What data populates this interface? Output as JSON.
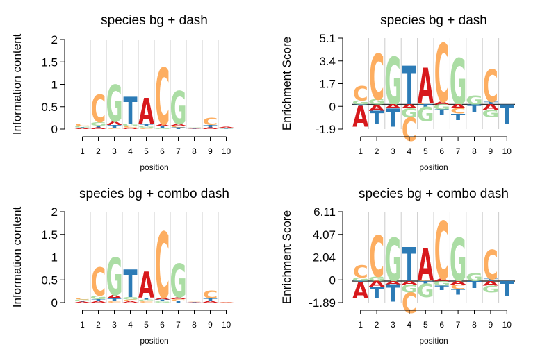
{
  "colors": {
    "A": "#d7191c",
    "C": "#fdae61",
    "G": "#abdda4",
    "T": "#2c7bb6",
    "grid": "#cccccc",
    "axis": "#000000"
  },
  "chart_data": [
    {
      "type": "sequence-logo",
      "title": "species bg + dash",
      "xlabel": "position",
      "ylabel": "Information content",
      "yticks": [
        "0",
        "0.5",
        "1",
        "1.5",
        "2"
      ],
      "ylim": [
        0,
        2
      ],
      "positions": [
        "1",
        "2",
        "3",
        "4",
        "5",
        "6",
        "7",
        "8",
        "9",
        "10"
      ],
      "stacks": [
        [
          {
            "l": "A",
            "v": 0.02
          },
          {
            "l": "T",
            "v": 0.02
          },
          {
            "l": "G",
            "v": 0.03
          },
          {
            "l": "C",
            "v": 0.05
          }
        ],
        [
          {
            "l": "A",
            "v": 0.04
          },
          {
            "l": "T",
            "v": 0.04
          },
          {
            "l": "G",
            "v": 0.08
          },
          {
            "l": "C",
            "v": 0.62
          }
        ],
        [
          {
            "l": "C",
            "v": 0.03
          },
          {
            "l": "T",
            "v": 0.06
          },
          {
            "l": "A",
            "v": 0.08
          },
          {
            "l": "G",
            "v": 0.82
          }
        ],
        [
          {
            "l": "A",
            "v": 0.03
          },
          {
            "l": "C",
            "v": 0.04
          },
          {
            "l": "G",
            "v": 0.05
          },
          {
            "l": "T",
            "v": 0.61
          }
        ],
        [
          {
            "l": "C",
            "v": 0.03
          },
          {
            "l": "G",
            "v": 0.04
          },
          {
            "l": "T",
            "v": 0.04
          },
          {
            "l": "A",
            "v": 0.58
          }
        ],
        [
          {
            "l": "G",
            "v": 0.03
          },
          {
            "l": "T",
            "v": 0.04
          },
          {
            "l": "A",
            "v": 0.04
          },
          {
            "l": "C",
            "v": 1.26
          }
        ],
        [
          {
            "l": "T",
            "v": 0.04
          },
          {
            "l": "C",
            "v": 0.04
          },
          {
            "l": "A",
            "v": 0.04
          },
          {
            "l": "G",
            "v": 0.74
          }
        ],
        [
          {
            "l": "A",
            "v": 0.01
          },
          {
            "l": "T",
            "v": 0.01
          },
          {
            "l": "C",
            "v": 0.01
          },
          {
            "l": "G",
            "v": 0.01
          }
        ],
        [
          {
            "l": "A",
            "v": 0.04
          },
          {
            "l": "T",
            "v": 0.05
          },
          {
            "l": "C",
            "v": 0.16
          }
        ],
        [
          {
            "l": "A",
            "v": 0.02
          },
          {
            "l": "T",
            "v": 0.01
          },
          {
            "l": "G",
            "v": 0.01
          },
          {
            "l": "C",
            "v": 0.01
          }
        ]
      ]
    },
    {
      "type": "sequence-logo",
      "title": "species bg + dash",
      "xlabel": "position",
      "ylabel": "Enrichment Score",
      "yticks": [
        "-1.9",
        "0",
        "1.7",
        "3.4",
        "5.1"
      ],
      "ylim": [
        -1.9,
        5.1
      ],
      "positions": [
        "1",
        "2",
        "3",
        "4",
        "5",
        "6",
        "7",
        "8",
        "9",
        "10"
      ],
      "stacks": [
        [
          {
            "l": "T",
            "v": -0.1
          },
          {
            "l": "A",
            "v": -1.6
          },
          {
            "l": "G",
            "v": 0.3
          },
          {
            "l": "C",
            "v": 1.1
          }
        ],
        [
          {
            "l": "A",
            "v": -0.5
          },
          {
            "l": "T",
            "v": -1.0
          },
          {
            "l": "G",
            "v": 0.4
          },
          {
            "l": "C",
            "v": 3.5
          }
        ],
        [
          {
            "l": "A",
            "v": -0.3
          },
          {
            "l": "T",
            "v": -1.4
          },
          {
            "l": "G",
            "v": 3.7
          }
        ],
        [
          {
            "l": "A",
            "v": -0.3
          },
          {
            "l": "G",
            "v": -0.7
          },
          {
            "l": "C",
            "v": -1.8
          },
          {
            "l": "T",
            "v": 3.0
          }
        ],
        [
          {
            "l": "T",
            "v": -0.2
          },
          {
            "l": "G",
            "v": -1.1
          },
          {
            "l": "C",
            "v": 0.1
          },
          {
            "l": "A",
            "v": 2.7
          }
        ],
        [
          {
            "l": "G",
            "v": -0.4
          },
          {
            "l": "T",
            "v": -0.4
          },
          {
            "l": "A",
            "v": 0.2
          },
          {
            "l": "C",
            "v": 4.5
          }
        ],
        [
          {
            "l": "C",
            "v": -0.4
          },
          {
            "l": "A",
            "v": -0.3
          },
          {
            "l": "T",
            "v": -0.5
          },
          {
            "l": "G",
            "v": 3.6
          }
        ],
        [
          {
            "l": "T",
            "v": -0.6
          },
          {
            "l": "G",
            "v": 0.7
          }
        ],
        [
          {
            "l": "A",
            "v": -0.4
          },
          {
            "l": "G",
            "v": -0.6
          },
          {
            "l": "T",
            "v": 0.2
          },
          {
            "l": "C",
            "v": 2.5
          }
        ],
        [
          {
            "l": "T",
            "v": -1.5
          }
        ]
      ]
    },
    {
      "type": "sequence-logo",
      "title": "species bg + combo dash",
      "xlabel": "position",
      "ylabel": "Information content",
      "yticks": [
        "0",
        "0.5",
        "1",
        "1.5",
        "2"
      ],
      "ylim": [
        0,
        2
      ],
      "positions": [
        "1",
        "2",
        "3",
        "4",
        "5",
        "6",
        "7",
        "8",
        "9",
        "10"
      ],
      "stacks": [
        [
          {
            "l": "A",
            "v": 0.02
          },
          {
            "l": "T",
            "v": 0.02
          },
          {
            "l": "G",
            "v": 0.03
          },
          {
            "l": "C",
            "v": 0.04
          }
        ],
        [
          {
            "l": "A",
            "v": 0.04
          },
          {
            "l": "T",
            "v": 0.04
          },
          {
            "l": "G",
            "v": 0.08
          },
          {
            "l": "C",
            "v": 0.62
          }
        ],
        [
          {
            "l": "C",
            "v": 0.03
          },
          {
            "l": "T",
            "v": 0.06
          },
          {
            "l": "A",
            "v": 0.08
          },
          {
            "l": "G",
            "v": 0.82
          }
        ],
        [
          {
            "l": "A",
            "v": 0.03
          },
          {
            "l": "C",
            "v": 0.04
          },
          {
            "l": "G",
            "v": 0.05
          },
          {
            "l": "T",
            "v": 0.61
          }
        ],
        [
          {
            "l": "C",
            "v": 0.03
          },
          {
            "l": "G",
            "v": 0.04
          },
          {
            "l": "T",
            "v": 0.04
          },
          {
            "l": "A",
            "v": 0.58
          }
        ],
        [
          {
            "l": "G",
            "v": 0.03
          },
          {
            "l": "T",
            "v": 0.04
          },
          {
            "l": "A",
            "v": 0.04
          },
          {
            "l": "C",
            "v": 1.45
          }
        ],
        [
          {
            "l": "T",
            "v": 0.04
          },
          {
            "l": "C",
            "v": 0.04
          },
          {
            "l": "A",
            "v": 0.04
          },
          {
            "l": "G",
            "v": 0.74
          }
        ],
        [
          {
            "l": "A",
            "v": 0.01
          },
          {
            "l": "T",
            "v": 0.01
          },
          {
            "l": "C",
            "v": 0.01
          }
        ],
        [
          {
            "l": "A",
            "v": 0.04
          },
          {
            "l": "T",
            "v": 0.05
          },
          {
            "l": "C",
            "v": 0.18
          }
        ],
        [
          {
            "l": "A",
            "v": 0.01
          },
          {
            "l": "C",
            "v": 0.01
          }
        ]
      ]
    },
    {
      "type": "sequence-logo",
      "title": "species bg + combo dash",
      "xlabel": "position",
      "ylabel": "Enrichment Score",
      "yticks": [
        "-1.89",
        "0",
        "2.04",
        "4.07",
        "6.11"
      ],
      "ylim": [
        -1.89,
        6.11
      ],
      "positions": [
        "1",
        "2",
        "3",
        "4",
        "5",
        "6",
        "7",
        "8",
        "9",
        "10"
      ],
      "stacks": [
        [
          {
            "l": "T",
            "v": -0.1
          },
          {
            "l": "A",
            "v": -1.4
          },
          {
            "l": "G",
            "v": 0.3
          },
          {
            "l": "C",
            "v": 1.1
          }
        ],
        [
          {
            "l": "A",
            "v": -0.5
          },
          {
            "l": "T",
            "v": -1.0
          },
          {
            "l": "G",
            "v": 0.4
          },
          {
            "l": "C",
            "v": 3.6
          }
        ],
        [
          {
            "l": "A",
            "v": -0.3
          },
          {
            "l": "T",
            "v": -1.5
          },
          {
            "l": "G",
            "v": 3.8
          }
        ],
        [
          {
            "l": "A",
            "v": -0.3
          },
          {
            "l": "G",
            "v": -0.7
          },
          {
            "l": "C",
            "v": -1.8
          },
          {
            "l": "T",
            "v": 3.0
          }
        ],
        [
          {
            "l": "T",
            "v": -0.2
          },
          {
            "l": "G",
            "v": -1.2
          },
          {
            "l": "C",
            "v": 0.1
          },
          {
            "l": "A",
            "v": 2.8
          }
        ],
        [
          {
            "l": "G",
            "v": -0.4
          },
          {
            "l": "T",
            "v": -0.4
          },
          {
            "l": "A",
            "v": 0.2
          },
          {
            "l": "C",
            "v": 5.1
          }
        ],
        [
          {
            "l": "C",
            "v": -0.4
          },
          {
            "l": "A",
            "v": -0.3
          },
          {
            "l": "T",
            "v": -0.5
          },
          {
            "l": "G",
            "v": 3.8
          }
        ],
        [
          {
            "l": "T",
            "v": -0.6
          },
          {
            "l": "G",
            "v": 0.7
          }
        ],
        [
          {
            "l": "A",
            "v": -0.4
          },
          {
            "l": "G",
            "v": -0.6
          },
          {
            "l": "T",
            "v": 0.2
          },
          {
            "l": "C",
            "v": 2.6
          }
        ],
        [
          {
            "l": "T",
            "v": -1.3
          }
        ]
      ]
    }
  ]
}
